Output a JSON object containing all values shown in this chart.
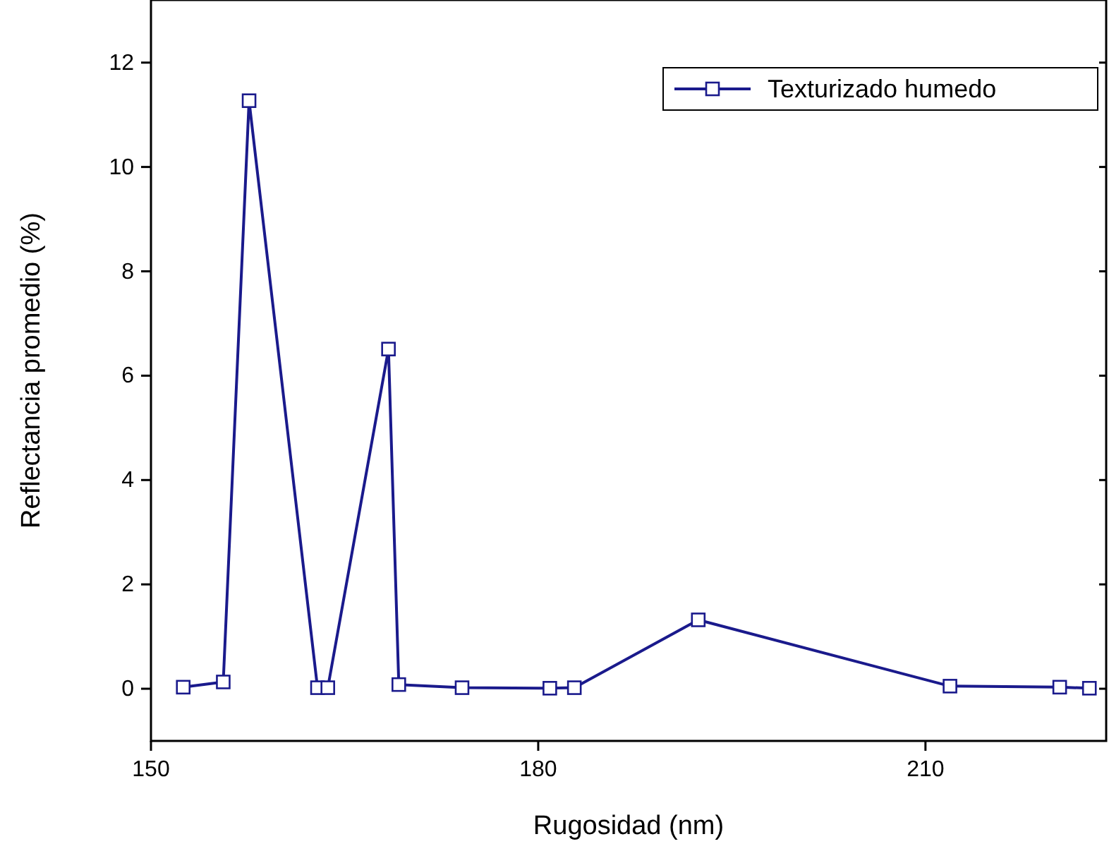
{
  "chart_data": {
    "type": "line",
    "xlabel": "Rugosidad (nm)",
    "ylabel": "Reflectancia promedio (%)",
    "xlim": [
      150,
      224
    ],
    "xticks": [
      150,
      180,
      210
    ],
    "ylim": [
      -1,
      13.2
    ],
    "yticks": [
      0,
      2,
      4,
      6,
      8,
      10,
      12
    ],
    "x": [
      152.5,
      155.6,
      157.6,
      162.9,
      163.7,
      168.4,
      169.2,
      174.1,
      180.9,
      182.8,
      192.4,
      211.9,
      220.4,
      222.7
    ],
    "series": [
      {
        "name": "Texturizado humedo",
        "color": "#1a1a8c",
        "values": [
          0.03,
          0.13,
          11.27,
          0.02,
          0.02,
          6.51,
          0.08,
          0.02,
          0.01,
          0.02,
          1.32,
          0.05,
          0.03,
          0.01
        ]
      }
    ],
    "marker": "square",
    "line_style": "solid",
    "legend": "top right",
    "grid": false
  }
}
